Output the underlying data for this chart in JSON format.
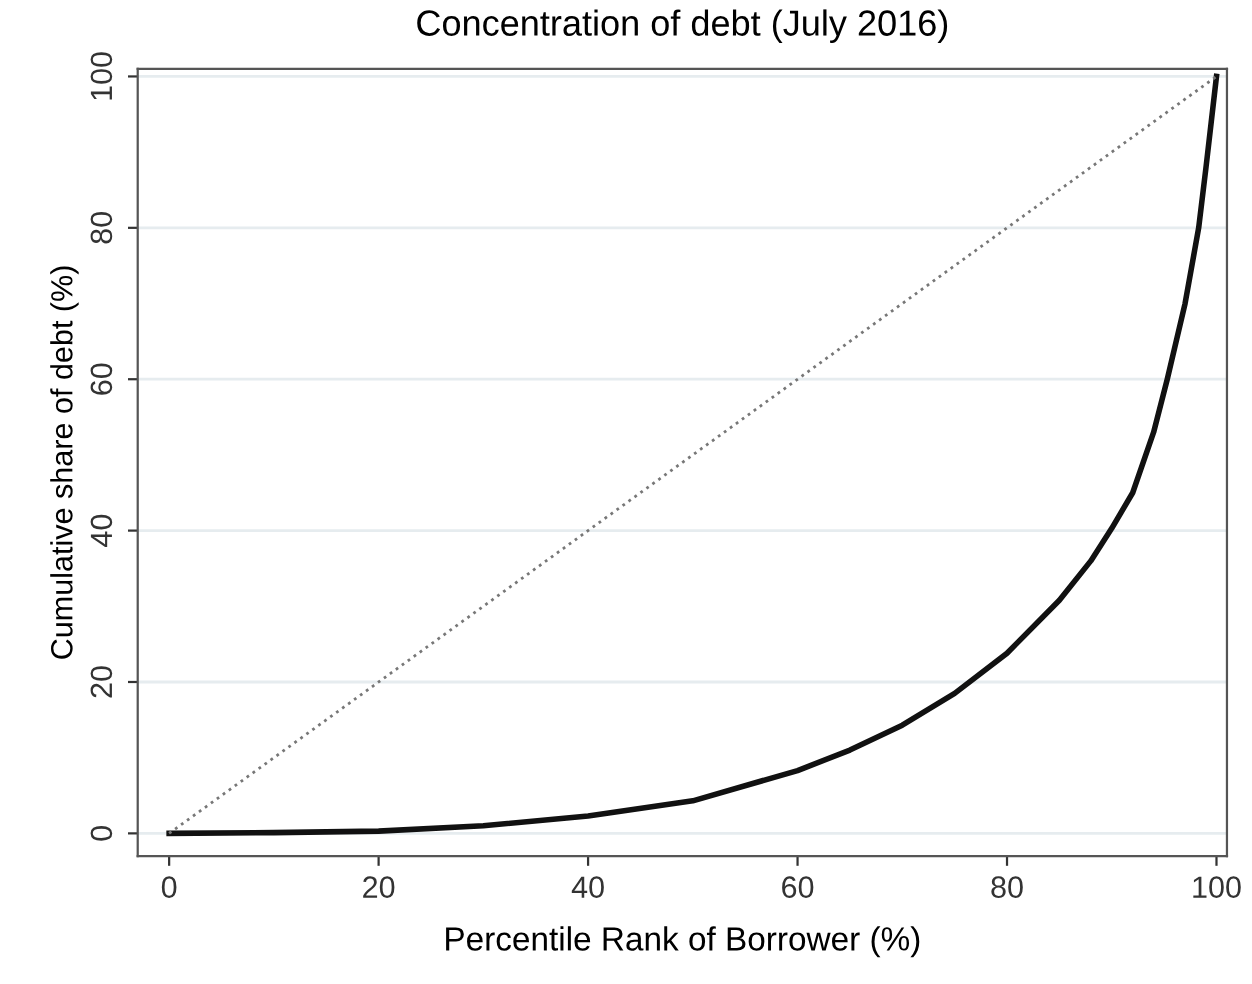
{
  "chart_data": {
    "type": "line",
    "title": "Concentration of debt (July 2016)",
    "xlabel": "Percentile Rank of Borrower (%)",
    "ylabel": "Cumulative share of debt (%)",
    "series": [
      {
        "color": "#111111",
        "line_style": "solid",
        "x": [
          0,
          10,
          20,
          30,
          40,
          50,
          60,
          65,
          70,
          75,
          80,
          85,
          88,
          90,
          92,
          94,
          95.3,
          97,
          98.3,
          99,
          99.5,
          100
        ],
        "values": [
          0,
          0.1,
          0.3,
          1.0,
          2.3,
          4.3,
          8.3,
          11,
          14.3,
          18.5,
          23.8,
          30.8,
          36,
          40.3,
          45,
          53,
          60,
          70,
          80,
          88,
          94,
          100
        ]
      },
      {
        "color": "#777777",
        "line_style": "dotted",
        "x": [
          0,
          100
        ],
        "values": [
          0,
          100
        ]
      }
    ],
    "xlim": [
      -3,
      101
    ],
    "ylim": [
      -3,
      101
    ],
    "xticks": [
      0,
      20,
      40,
      60,
      80,
      100
    ],
    "yticks": [
      0,
      20,
      40,
      60,
      80,
      100
    ],
    "grid": "y",
    "legend": false,
    "marker": "none"
  }
}
